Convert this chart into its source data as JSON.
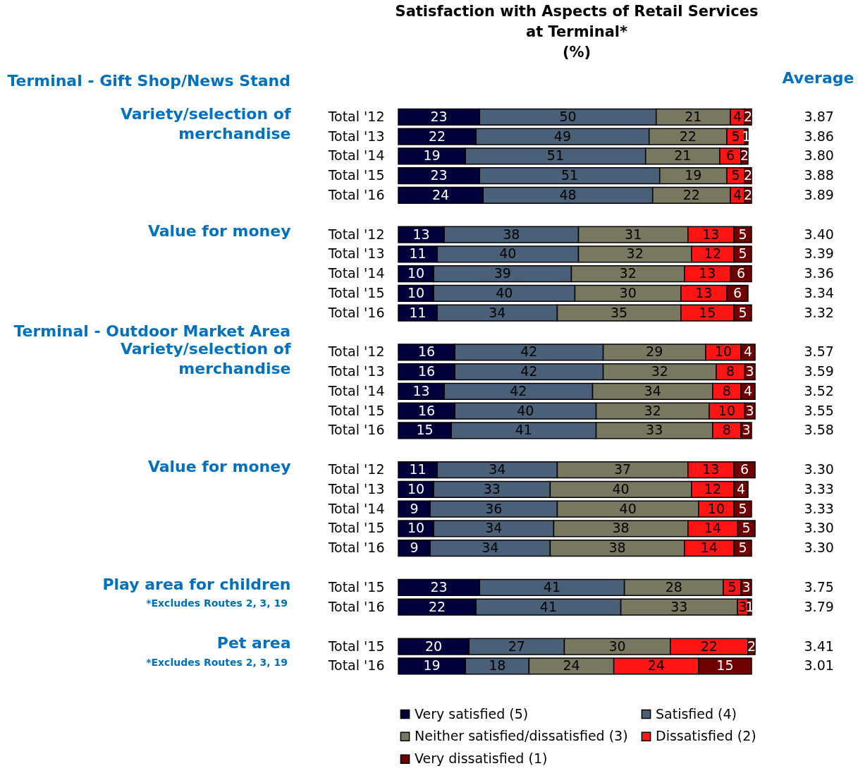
{
  "chart_data": [
    {
      "type": "bar",
      "orientation": "horizontal",
      "stacked": true,
      "data_labels": true,
      "tick_labels": "y",
      "title": "Satisfaction with Aspects of Retail Services\nat Terminal*\n(%)",
      "subtitle": "Terminal - Gift Shop/News Stand",
      "ylabel": "Variety/selection of merchandise",
      "y2label": "Average",
      "categories": [
        "Total '12",
        "Total '13",
        "Total '14",
        "Total '15",
        "Total '16"
      ],
      "y2_categories": [
        "3.87",
        "3.86",
        "3.80",
        "3.88",
        "3.89"
      ],
      "series": [
        {
          "color": "#00003c",
          "values": [
            23,
            22,
            19,
            23,
            24
          ]
        },
        {
          "color": "#4a6079",
          "values": [
            50,
            49,
            51,
            51,
            48
          ]
        },
        {
          "color": "#787860",
          "values": [
            21,
            22,
            21,
            19,
            22
          ]
        },
        {
          "color": "#ff1414",
          "values": [
            4,
            5,
            6,
            5,
            4
          ]
        },
        {
          "color": "#700000",
          "values": [
            2,
            1,
            2,
            2,
            2
          ]
        }
      ]
    },
    {
      "type": "bar",
      "orientation": "horizontal",
      "stacked": true,
      "data_labels": true,
      "tick_labels": "y",
      "ylabel": "Value for money",
      "categories": [
        "Total '12",
        "Total '13",
        "Total '14",
        "Total '15",
        "Total '16"
      ],
      "y2_categories": [
        "3.40",
        "3.39",
        "3.36",
        "3.34",
        "3.32"
      ],
      "series": [
        {
          "color": "#00003c",
          "values": [
            13,
            11,
            10,
            10,
            11
          ]
        },
        {
          "color": "#4a6079",
          "values": [
            38,
            40,
            39,
            40,
            34
          ]
        },
        {
          "color": "#787860",
          "values": [
            31,
            32,
            32,
            30,
            35
          ]
        },
        {
          "color": "#ff1414",
          "values": [
            13,
            12,
            13,
            13,
            15
          ]
        },
        {
          "color": "#700000",
          "values": [
            5,
            5,
            6,
            6,
            5
          ]
        }
      ]
    },
    {
      "type": "bar",
      "orientation": "horizontal",
      "stacked": true,
      "data_labels": true,
      "tick_labels": "y",
      "subtitle": "Terminal - Outdoor Market Area",
      "ylabel": "Variety/selection of merchandise",
      "categories": [
        "Total '12",
        "Total '13",
        "Total '14",
        "Total '15",
        "Total '16"
      ],
      "y2_categories": [
        "3.57",
        "3.59",
        "3.52",
        "3.55",
        "3.58"
      ],
      "series": [
        {
          "color": "#00003c",
          "values": [
            16,
            16,
            13,
            16,
            15
          ]
        },
        {
          "color": "#4a6079",
          "values": [
            42,
            42,
            42,
            40,
            41
          ]
        },
        {
          "color": "#787860",
          "values": [
            29,
            32,
            34,
            32,
            33
          ]
        },
        {
          "color": "#ff1414",
          "values": [
            10,
            8,
            8,
            10,
            8
          ]
        },
        {
          "color": "#700000",
          "values": [
            4,
            3,
            4,
            3,
            3
          ]
        }
      ]
    },
    {
      "type": "bar",
      "orientation": "horizontal",
      "stacked": true,
      "data_labels": true,
      "tick_labels": "y",
      "ylabel": "Value for money",
      "categories": [
        "Total '12",
        "Total '13",
        "Total '14",
        "Total '15",
        "Total '16"
      ],
      "y2_categories": [
        "3.30",
        "3.33",
        "3.33",
        "3.30",
        "3.30"
      ],
      "series": [
        {
          "color": "#00003c",
          "values": [
            11,
            10,
            9,
            10,
            9
          ]
        },
        {
          "color": "#4a6079",
          "values": [
            34,
            33,
            36,
            34,
            34
          ]
        },
        {
          "color": "#787860",
          "values": [
            37,
            40,
            40,
            38,
            38
          ]
        },
        {
          "color": "#ff1414",
          "values": [
            13,
            12,
            10,
            14,
            14
          ]
        },
        {
          "color": "#700000",
          "values": [
            6,
            4,
            5,
            5,
            5
          ]
        }
      ]
    },
    {
      "type": "bar",
      "orientation": "horizontal",
      "stacked": true,
      "data_labels": true,
      "tick_labels": "y",
      "ylabel": "Play area for children",
      "annotations": [
        "*Excludes Routes 2, 3, 19"
      ],
      "categories": [
        "Total '15",
        "Total '16"
      ],
      "y2_categories": [
        "3.75",
        "3.79"
      ],
      "series": [
        {
          "color": "#00003c",
          "values": [
            23,
            22
          ]
        },
        {
          "color": "#4a6079",
          "values": [
            41,
            41
          ]
        },
        {
          "color": "#787860",
          "values": [
            28,
            33
          ]
        },
        {
          "color": "#ff1414",
          "values": [
            5,
            3
          ]
        },
        {
          "color": "#700000",
          "values": [
            3,
            1
          ]
        }
      ]
    },
    {
      "type": "bar",
      "orientation": "horizontal",
      "stacked": true,
      "data_labels": true,
      "tick_labels": "y",
      "ylabel": "Pet area",
      "annotations": [
        "*Excludes Routes 2, 3, 19"
      ],
      "legend": "bottom",
      "categories": [
        "Total '15",
        "Total '16"
      ],
      "y2_categories": [
        "3.41",
        "3.01"
      ],
      "series": [
        {
          "name": "Very satisfied (5)",
          "color": "#00003c",
          "values": [
            20,
            19
          ]
        },
        {
          "name": "Satisfied (4)",
          "color": "#4a6079",
          "values": [
            27,
            18
          ]
        },
        {
          "name": "Neither satisfied/dissatisfied (3)",
          "color": "#787860",
          "values": [
            30,
            24
          ]
        },
        {
          "name": "Dissatisfied (2)",
          "color": "#ff1414",
          "values": [
            22,
            24
          ]
        },
        {
          "name": "Very dissatisfied (1)",
          "color": "#700000",
          "values": [
            2,
            15
          ]
        }
      ]
    }
  ]
}
